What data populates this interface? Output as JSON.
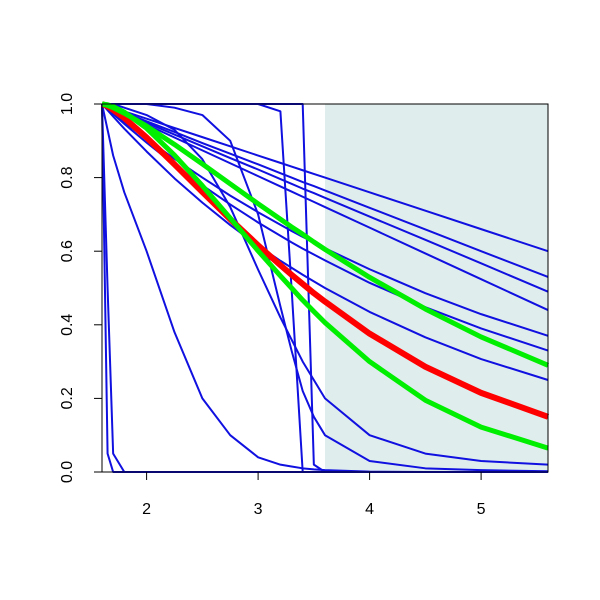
{
  "chart_data": {
    "type": "line",
    "x": [
      1.6,
      1.65,
      1.7,
      1.8,
      2,
      2.25,
      2.5,
      2.75,
      3,
      3.2,
      3.3,
      3.4,
      3.5,
      3.6,
      4,
      4.5,
      5,
      5.6
    ],
    "xlim": [
      1.6,
      5.6
    ],
    "ylim": [
      0,
      1
    ],
    "xticks": [
      2,
      3,
      4,
      5
    ],
    "yticks": [
      {
        "value": 0,
        "label": "0.0"
      },
      {
        "value": 0.2,
        "label": "0.2"
      },
      {
        "value": 0.4,
        "label": "0.4"
      },
      {
        "value": 0.6,
        "label": "0.6"
      },
      {
        "value": 0.8,
        "label": "0.8"
      },
      {
        "value": 1,
        "label": "1.0"
      }
    ],
    "shaded_xlim": [
      3.6,
      5.6
    ],
    "shade_color": "#e0eded",
    "series": [
      {
        "color": "#1010e0",
        "width": 2,
        "values": [
          1,
          0.995,
          0.99,
          0.98,
          0.96,
          0.935,
          0.91,
          0.885,
          0.86,
          0.84,
          0.83,
          0.82,
          0.81,
          0.8,
          0.76,
          0.71,
          0.66,
          0.6
        ]
      },
      {
        "color": "#1010e0",
        "width": 2,
        "values": [
          1,
          0.994,
          0.988,
          0.977,
          0.953,
          0.924,
          0.894,
          0.865,
          0.836,
          0.812,
          0.8,
          0.788,
          0.777,
          0.765,
          0.718,
          0.659,
          0.6,
          0.53
        ]
      },
      {
        "color": "#1010e0",
        "width": 2,
        "values": [
          1,
          0.994,
          0.987,
          0.974,
          0.949,
          0.917,
          0.885,
          0.853,
          0.822,
          0.796,
          0.783,
          0.77,
          0.758,
          0.745,
          0.694,
          0.631,
          0.567,
          0.49
        ]
      },
      {
        "color": "#1010e0",
        "width": 2,
        "values": [
          1,
          0.993,
          0.986,
          0.972,
          0.944,
          0.909,
          0.874,
          0.839,
          0.804,
          0.776,
          0.762,
          0.748,
          0.734,
          0.72,
          0.664,
          0.594,
          0.524,
          0.44
        ]
      },
      {
        "color": "#1010e0",
        "width": 2,
        "values": [
          1,
          0.988,
          0.975,
          0.951,
          0.905,
          0.851,
          0.8,
          0.751,
          0.706,
          0.672,
          0.655,
          0.639,
          0.624,
          0.608,
          0.551,
          0.486,
          0.429,
          0.37
        ]
      },
      {
        "color": "#1010e0",
        "width": 2,
        "values": [
          1,
          0.986,
          0.973,
          0.946,
          0.895,
          0.835,
          0.779,
          0.727,
          0.678,
          0.642,
          0.624,
          0.607,
          0.591,
          0.575,
          0.514,
          0.448,
          0.39,
          0.33
        ]
      },
      {
        "color": "#1010e0",
        "width": 2,
        "values": [
          1,
          0.983,
          0.966,
          0.933,
          0.871,
          0.798,
          0.732,
          0.671,
          0.615,
          0.574,
          0.555,
          0.536,
          0.518,
          0.5,
          0.435,
          0.366,
          0.307,
          0.25
        ]
      },
      {
        "color": "#1010e0",
        "width": 2,
        "values": [
          1,
          1,
          1,
          0.99,
          0.97,
          0.93,
          0.85,
          0.72,
          0.55,
          0.42,
          0.36,
          0.3,
          0.25,
          0.2,
          0.1,
          0.05,
          0.03,
          0.02
        ]
      },
      {
        "color": "#1010e0",
        "width": 2,
        "values": [
          1,
          1,
          1,
          1,
          1,
          0.99,
          0.97,
          0.9,
          0.7,
          0.45,
          0.33,
          0.22,
          0.15,
          0.1,
          0.03,
          0.01,
          0.005,
          0.002
        ]
      },
      {
        "color": "#1010e0",
        "width": 2,
        "values": [
          1,
          1,
          1,
          1,
          1,
          1,
          1,
          1,
          1,
          0.98,
          0.5,
          0,
          0,
          0,
          0,
          0,
          0,
          0
        ]
      },
      {
        "color": "#1010e0",
        "width": 2,
        "values": [
          1,
          1,
          1,
          1,
          1,
          1,
          1,
          1,
          1,
          1,
          1,
          1,
          0.02,
          0,
          0,
          0,
          0,
          0
        ]
      },
      {
        "color": "#1010e0",
        "width": 2,
        "values": [
          1,
          0.93,
          0.86,
          0.76,
          0.6,
          0.38,
          0.2,
          0.1,
          0.04,
          0.02,
          0.015,
          0.01,
          0.007,
          0.005,
          0.001,
          0,
          0,
          0
        ]
      },
      {
        "color": "#1010e0",
        "width": 2,
        "values": [
          1,
          0.5,
          0.05,
          0,
          0,
          0,
          0,
          0,
          0,
          0,
          0,
          0,
          0,
          0,
          0,
          0,
          0,
          0
        ]
      },
      {
        "color": "#1010e0",
        "width": 2,
        "values": [
          1,
          0.05,
          0,
          0,
          0,
          0,
          0,
          0,
          0,
          0,
          0,
          0,
          0,
          0,
          0,
          0,
          0,
          0
        ]
      },
      {
        "color": "#ff0000",
        "width": 6,
        "values": [
          1,
          0.994,
          0.984,
          0.962,
          0.909,
          0.836,
          0.761,
          0.687,
          0.616,
          0.562,
          0.536,
          0.511,
          0.486,
          0.463,
          0.376,
          0.286,
          0.215,
          0.15
        ]
      },
      {
        "color": "#00ee00",
        "width": 5,
        "values": [
          1,
          0.996,
          0.99,
          0.975,
          0.94,
          0.89,
          0.837,
          0.783,
          0.729,
          0.687,
          0.666,
          0.646,
          0.625,
          0.605,
          0.529,
          0.443,
          0.367,
          0.29
        ]
      },
      {
        "color": "#00ee00",
        "width": 5,
        "values": [
          1,
          0.998,
          0.993,
          0.978,
          0.934,
          0.861,
          0.778,
          0.69,
          0.601,
          0.533,
          0.5,
          0.467,
          0.436,
          0.406,
          0.3,
          0.195,
          0.122,
          0.065
        ]
      }
    ]
  }
}
